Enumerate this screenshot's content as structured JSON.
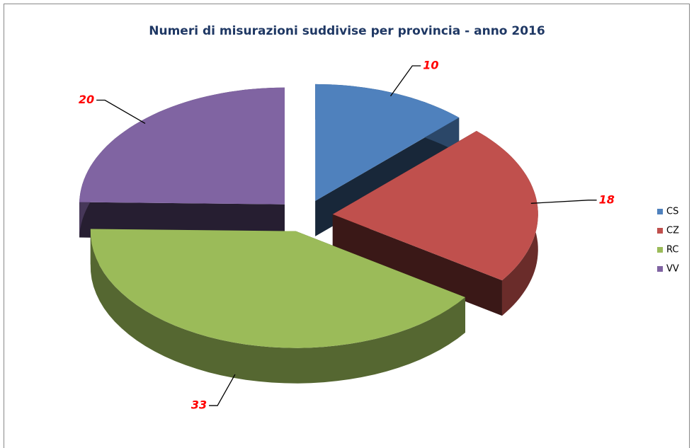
{
  "chart_data": {
    "type": "pie3d",
    "title": "Numeri di misurazioni suddivise per provincia - anno 2016",
    "categories": [
      "CS",
      "CZ",
      "RC",
      "VV"
    ],
    "values": [
      10,
      18,
      33,
      20
    ],
    "colors": [
      "#4f81bd",
      "#c0504d",
      "#9bbb59",
      "#8064a2"
    ],
    "label_color": "#ff0000",
    "legend": "right"
  }
}
